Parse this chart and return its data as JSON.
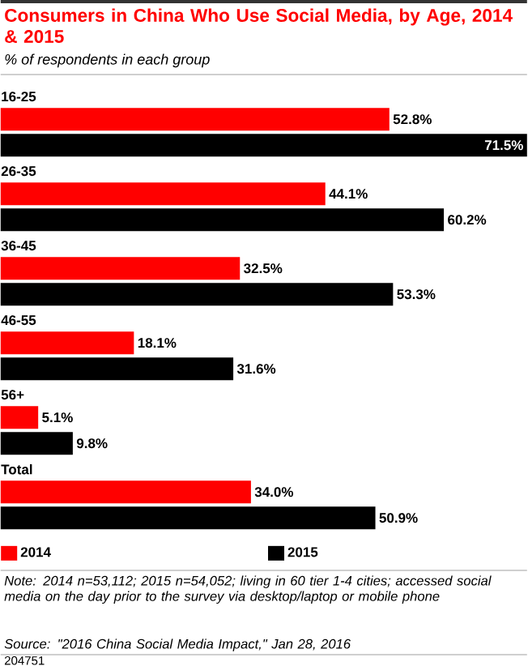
{
  "chart_data": {
    "type": "bar",
    "orientation": "horizontal",
    "title": "Consumers in China Who Use Social Media, by Age, 2014 & 2015",
    "subtitle": "% of respondents in each group",
    "categories": [
      "16-25",
      "26-35",
      "36-45",
      "46-55",
      "56+",
      "Total"
    ],
    "series": [
      {
        "name": "2014",
        "color": "#ff0000",
        "values": [
          52.8,
          44.1,
          32.5,
          18.1,
          5.1,
          34.0
        ],
        "value_labels": [
          "52.8%",
          "44.1%",
          "32.5%",
          "18.1%",
          "5.1%",
          "34.0%"
        ]
      },
      {
        "name": "2015",
        "color": "#000000",
        "values": [
          71.5,
          60.2,
          53.3,
          31.6,
          9.8,
          50.9
        ],
        "value_labels": [
          "71.5%",
          "60.2%",
          "53.3%",
          "31.6%",
          "9.8%",
          "50.9%"
        ]
      }
    ],
    "legend": "bottom",
    "annotations": [
      "Note: 2014 n=53,112; 2015 n=54,052; living in 60 tier 1-4 cities; accessed social media on the day prior to the survey via desktop/laptop or mobile phone",
      "Source: \"2016 China Social Media Impact,\" Jan 28, 2016",
      "204751"
    ]
  }
}
